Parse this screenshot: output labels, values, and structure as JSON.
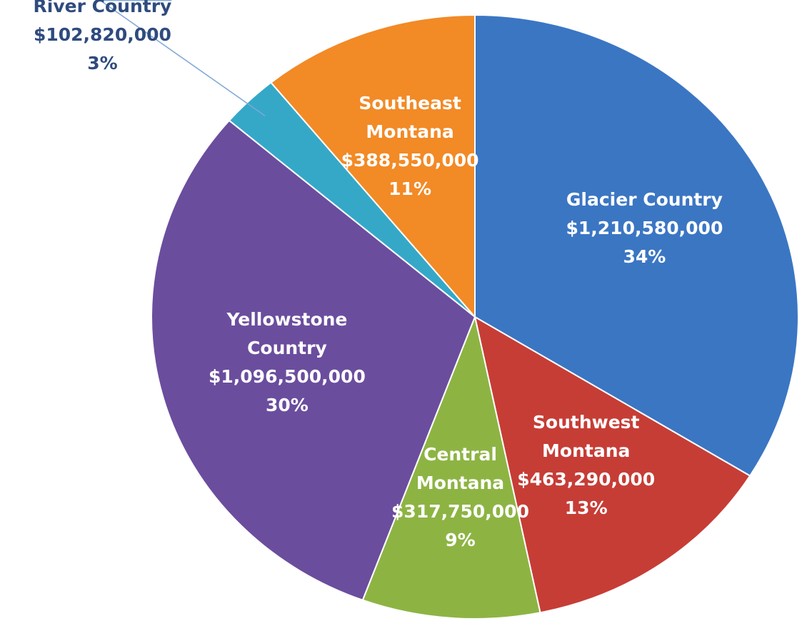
{
  "chart_data": {
    "type": "pie",
    "categories": [
      "Glacier Country",
      "Southwest\nMontana",
      "Central\nMontana",
      "Yellowstone\nCountry",
      "Missouri\nRiver Country",
      "Southeast\nMontana"
    ],
    "values": [
      1210580000,
      463290000,
      317750000,
      1096500000,
      102820000,
      388550000
    ],
    "value_labels": [
      "$1,210,580,000",
      "$463,290,000",
      "$317,750,000",
      "$1,096,500,000",
      "$102,820,000",
      "$388,550,000"
    ],
    "percent_labels": [
      "34%",
      "13%",
      "9%",
      "30%",
      "3%",
      "11%"
    ],
    "colors": [
      "#3b76c3",
      "#c63d36",
      "#8db443",
      "#6b4d9e",
      "#35a8c8",
      "#f28a26"
    ]
  }
}
